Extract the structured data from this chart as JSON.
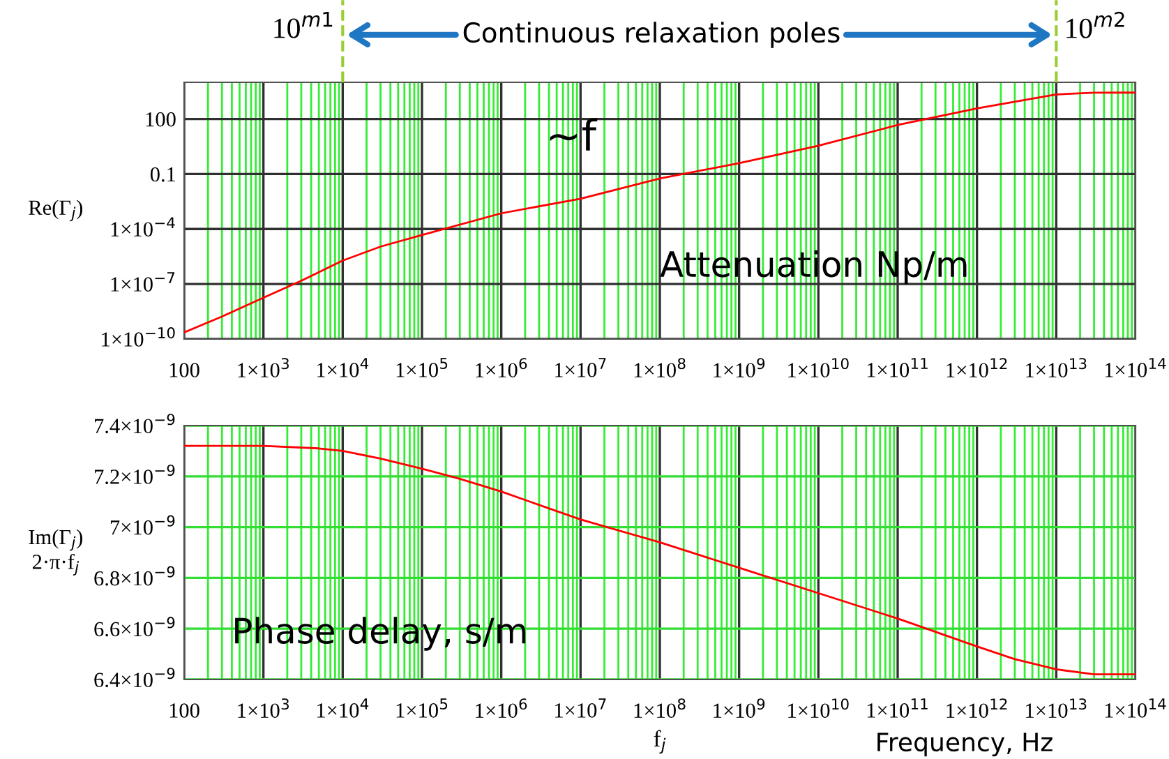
{
  "chart_data": [
    {
      "type": "line",
      "title": "Continuous relaxation poles",
      "ylabel": "Re(Γ$_{j}$)",
      "log": "xy",
      "grid": true,
      "x": [
        100,
        300,
        1000,
        3000,
        10000,
        30000,
        100000,
        1000000,
        10000000,
        100000000,
        1000000000,
        10000000000,
        100000000000,
        1000000000000,
        10000000000000,
        30000000000000,
        100000000000000
      ],
      "series": [
        {
          "color": "#ff0000",
          "values": [
            2.3e-10,
            1.7e-09,
            1.8e-08,
            1.5e-07,
            1.9e-06,
            1.1e-05,
            4.7e-05,
            0.00072,
            0.0045,
            0.057,
            0.39,
            3.5,
            47,
            380,
            2200,
            2700,
            2750
          ]
        }
      ],
      "xlim": [
        100,
        100000000000000
      ],
      "ylim": [
        1e-10,
        10000
      ],
      "xticks": [
        100,
        {
          "value": 1000,
          "label": "1×10$^{3}$"
        },
        {
          "value": 10000,
          "label": "1×10$^{4}$"
        },
        {
          "value": 100000,
          "label": "1×10$^{5}$"
        },
        {
          "value": 1000000,
          "label": "1×10$^{6}$"
        },
        {
          "value": 10000000,
          "label": "1×10$^{7}$"
        },
        {
          "value": 100000000,
          "label": "1×10$^{8}$"
        },
        {
          "value": 1000000000,
          "label": "1×10$^{9}$"
        },
        {
          "value": 10000000000,
          "label": "1×10$^{10}$"
        },
        {
          "value": 100000000000,
          "label": "1×10$^{11}$"
        },
        {
          "value": 1000000000000,
          "label": "1×10$^{12}$"
        },
        {
          "value": 10000000000000,
          "label": "1×10$^{13}$"
        },
        {
          "value": 100000000000000,
          "label": "1×10$^{14}$"
        }
      ],
      "yticks": [
        {
          "value": 1e-10,
          "label": "1×10$^{−10}$"
        },
        {
          "value": 1e-07,
          "label": "1×10$^{−7}$"
        },
        {
          "value": 0.0001,
          "label": "1×10$^{−4}$"
        },
        0.1,
        100
      ],
      "ref_lines": [
        {
          "axis": "x",
          "value": 10000,
          "label": "10$^{m1}$",
          "color": "#9acd32",
          "line_style": "dashed"
        },
        {
          "axis": "x",
          "value": 10000000000000,
          "label": "10$^{m2}$",
          "color": "#9acd32",
          "line_style": "dashed"
        }
      ],
      "annotations": [
        "~f",
        "Attenuation Np/m"
      ]
    },
    {
      "type": "line",
      "ylabel": "Im(Γ$_{j}$)\n2·π·f$_{j}$",
      "xlabel": "f$_{j}$",
      "log": "x",
      "grid": true,
      "x": [
        100,
        1000,
        5000,
        10000,
        30000,
        100000,
        300000,
        1000000,
        10000000,
        100000000,
        1000000000,
        10000000000,
        100000000000,
        1000000000000,
        3000000000000,
        10000000000000,
        30000000000000,
        100000000000000
      ],
      "series": [
        {
          "color": "#ff0000",
          "values": [
            7.32e-09,
            7.32e-09,
            7.31e-09,
            7.3e-09,
            7.27e-09,
            7.23e-09,
            7.19e-09,
            7.14e-09,
            7.03e-09,
            6.94e-09,
            6.84e-09,
            6.74e-09,
            6.64e-09,
            6.53e-09,
            6.48e-09,
            6.44e-09,
            6.42e-09,
            6.42e-09
          ]
        }
      ],
      "xlim": [
        100,
        100000000000000
      ],
      "ylim": [
        6.4e-09,
        7.4e-09
      ],
      "xticks": [
        100,
        {
          "value": 1000,
          "label": "1×10$^{3}$"
        },
        {
          "value": 10000,
          "label": "1×10$^{4}$"
        },
        {
          "value": 100000,
          "label": "1×10$^{5}$"
        },
        {
          "value": 1000000,
          "label": "1×10$^{6}$"
        },
        {
          "value": 10000000,
          "label": "1×10$^{7}$"
        },
        {
          "value": 100000000,
          "label": "1×10$^{8}$"
        },
        {
          "value": 1000000000,
          "label": "1×10$^{9}$"
        },
        {
          "value": 10000000000,
          "label": "1×10$^{10}$"
        },
        {
          "value": 100000000000,
          "label": "1×10$^{11}$"
        },
        {
          "value": 1000000000000,
          "label": "1×10$^{12}$"
        },
        {
          "value": 10000000000000,
          "label": "1×10$^{13}$"
        },
        {
          "value": 100000000000000,
          "label": "1×10$^{14}$"
        }
      ],
      "yticks": [
        {
          "value": 6.4e-09,
          "label": "6.4×10$^{−9}$"
        },
        {
          "value": 6.6e-09,
          "label": "6.6×10$^{−9}$"
        },
        {
          "value": 6.8e-09,
          "label": "6.8×10$^{−9}$"
        },
        {
          "value": 7e-09,
          "label": "7×10$^{−9}$"
        },
        {
          "value": 7.2e-09,
          "label": "7.2×10$^{−9}$"
        },
        {
          "value": 7.4e-09,
          "label": "7.4×10$^{−9}$"
        }
      ],
      "annotations": [
        "Phase delay, s/m",
        "Frequency, Hz"
      ]
    }
  ]
}
